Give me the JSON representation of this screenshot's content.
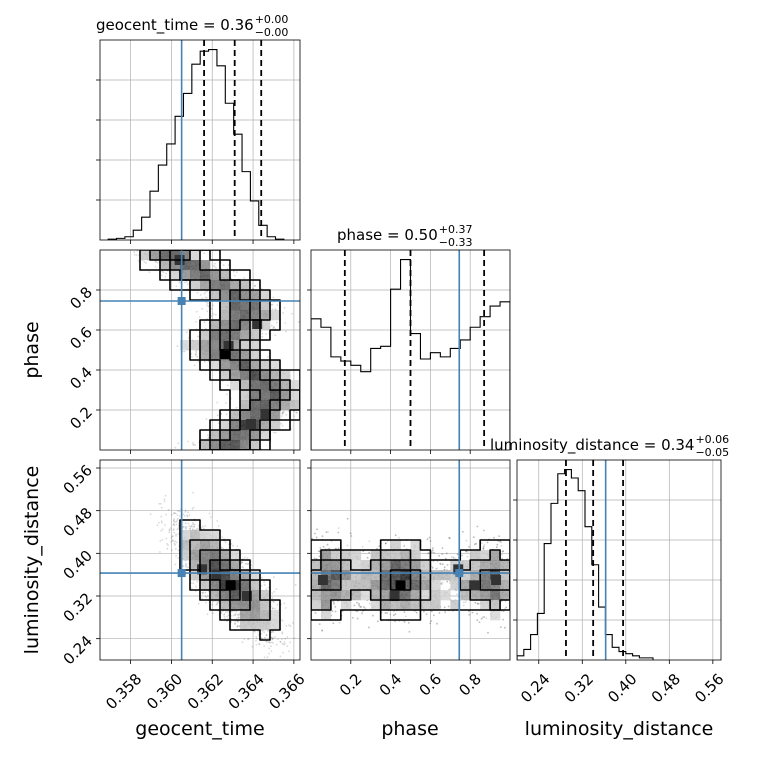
{
  "colors": {
    "truth": "#4682b4",
    "hist": "#000000",
    "grid": "#b0b0b0",
    "cmap_dark": "#000000"
  },
  "titles": {
    "geocent_time": {
      "name": "geocent_time",
      "value": "0.36",
      "plus": "+0.00",
      "minus": "−0.00"
    },
    "phase": {
      "name": "phase",
      "value": "0.50",
      "plus": "+0.37",
      "minus": "−0.33"
    },
    "luminosity_distance": {
      "name": "luminosity_distance",
      "value": "0.34",
      "plus": "+0.06",
      "minus": "−0.05"
    }
  },
  "chart_data": [
    {
      "type": "histogram",
      "param": "geocent_time",
      "xlim": [
        0.3565,
        0.3663
      ],
      "bin_edges_start": 0.3569,
      "bin_width": 0.00041,
      "counts": [
        0.5,
        1,
        2,
        6,
        14,
        30,
        46,
        59,
        76,
        90,
        108,
        116,
        117,
        107,
        84,
        65,
        42,
        24,
        9,
        2,
        0.5
      ],
      "quantiles": [
        0.3616,
        0.3631,
        0.3644
      ],
      "truth": 0.3605,
      "title": "geocent_time = 0.36",
      "title_plus": "+0.00",
      "title_minus": "−0.00"
    },
    {
      "type": "histogram",
      "param": "phase",
      "xlim": [
        0.0,
        1.0
      ],
      "bin_width": 0.05,
      "counts": [
        62,
        58,
        44,
        42,
        40,
        37,
        48,
        49,
        76,
        90,
        55,
        43,
        46,
        44,
        48,
        52,
        58,
        63,
        68,
        70
      ],
      "quantiles": [
        0.17,
        0.5,
        0.87
      ],
      "truth": 0.745,
      "title": "phase = 0.50",
      "title_plus": "+0.37",
      "title_minus": "−0.33"
    },
    {
      "type": "histogram",
      "param": "luminosity_distance",
      "xlim": [
        0.2,
        0.575
      ],
      "bin_width": 0.0125,
      "counts": [
        2,
        5,
        12,
        22,
        55,
        74,
        88,
        90,
        86,
        80,
        63,
        45,
        25,
        12,
        6,
        4,
        3,
        2,
        1,
        1
      ],
      "quantiles": [
        0.29,
        0.34,
        0.395
      ],
      "truth": 0.363,
      "title": "luminosity_distance = 0.34",
      "title_plus": "+0.06",
      "title_minus": "−0.05"
    },
    {
      "type": "heatmap",
      "x_param": "geocent_time",
      "y_param": "phase",
      "xlim": [
        0.3565,
        0.3663
      ],
      "ylim": [
        0.0,
        1.0
      ],
      "truth": [
        0.3605,
        0.745
      ],
      "ridge": [
        [
          0.97,
          0.3599
        ],
        [
          0.88,
          0.3614
        ],
        [
          0.78,
          0.3632
        ],
        [
          0.68,
          0.3638
        ],
        [
          0.6,
          0.363
        ],
        [
          0.52,
          0.3622
        ],
        [
          0.47,
          0.3627
        ],
        [
          0.4,
          0.3637
        ],
        [
          0.32,
          0.3646
        ],
        [
          0.24,
          0.3648
        ],
        [
          0.18,
          0.3643
        ],
        [
          0.1,
          0.3635
        ],
        [
          0.03,
          0.3628
        ]
      ],
      "dark_cells": [
        [
          0.3626,
          0.48
        ],
        [
          0.3646,
          0.18
        ],
        [
          0.3639,
          0.13
        ],
        [
          0.3628,
          0.52
        ],
        [
          0.3642,
          0.63
        ],
        [
          0.3604,
          0.95
        ]
      ]
    },
    {
      "type": "heatmap",
      "x_param": "geocent_time",
      "y_param": "luminosity_distance",
      "xlim": [
        0.3565,
        0.3663
      ],
      "ylim": [
        0.2,
        0.575
      ],
      "truth": [
        0.3605,
        0.363
      ],
      "center": [
        0.3627,
        0.35
      ],
      "dark_cells": [
        [
          0.3629,
          0.34
        ],
        [
          0.3637,
          0.32
        ],
        [
          0.3622,
          0.36
        ],
        [
          0.3615,
          0.37
        ]
      ]
    },
    {
      "type": "heatmap",
      "x_param": "phase",
      "y_param": "luminosity_distance",
      "xlim": [
        0.0,
        1.0
      ],
      "ylim": [
        0.2,
        0.575
      ],
      "truth": [
        0.745,
        0.363
      ],
      "blobs": [
        0.04,
        0.45,
        0.92
      ],
      "dark_cells": [
        [
          0.45,
          0.34
        ],
        [
          0.42,
          0.32
        ],
        [
          0.06,
          0.35
        ],
        [
          0.93,
          0.35
        ],
        [
          0.82,
          0.34
        ],
        [
          0.74,
          0.37
        ]
      ]
    }
  ],
  "axes": {
    "geocent_time": {
      "label": "geocent_time",
      "ticks": [
        0.358,
        0.36,
        0.362,
        0.364,
        0.366
      ],
      "tick_labels": [
        "0.358",
        "0.360",
        "0.362",
        "0.364",
        "0.366"
      ]
    },
    "phase": {
      "label": "phase",
      "ticks": [
        0.2,
        0.4,
        0.6,
        0.8
      ],
      "tick_labels": [
        "0.2",
        "0.4",
        "0.6",
        "0.8"
      ]
    },
    "luminosity_distance": {
      "label": "luminosity_distance",
      "ticks": [
        0.24,
        0.32,
        0.4,
        0.48,
        0.56
      ],
      "tick_labels": [
        "0.24",
        "0.32",
        "0.40",
        "0.48",
        "0.56"
      ]
    }
  }
}
